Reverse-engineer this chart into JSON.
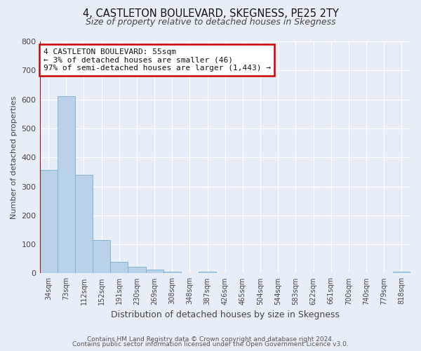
{
  "title": "4, CASTLETON BOULEVARD, SKEGNESS, PE25 2TY",
  "subtitle": "Size of property relative to detached houses in Skegness",
  "xlabel": "Distribution of detached houses by size in Skegness",
  "ylabel": "Number of detached properties",
  "bar_labels": [
    "34sqm",
    "73sqm",
    "112sqm",
    "152sqm",
    "191sqm",
    "230sqm",
    "269sqm",
    "308sqm",
    "348sqm",
    "387sqm",
    "426sqm",
    "465sqm",
    "504sqm",
    "544sqm",
    "583sqm",
    "622sqm",
    "661sqm",
    "700sqm",
    "740sqm",
    "779sqm",
    "818sqm"
  ],
  "bar_values": [
    357,
    611,
    340,
    115,
    40,
    22,
    13,
    5,
    0,
    5,
    0,
    0,
    0,
    0,
    0,
    0,
    0,
    0,
    0,
    0,
    5
  ],
  "bar_color": "#b8d0e8",
  "bar_edge_color": "#7aafd4",
  "ylim": [
    0,
    800
  ],
  "yticks": [
    0,
    100,
    200,
    300,
    400,
    500,
    600,
    700,
    800
  ],
  "annotation_title": "4 CASTLETON BOULEVARD: 55sqm",
  "annotation_line1": "← 3% of detached houses are smaller (46)",
  "annotation_line2": "97% of semi-detached houses are larger (1,443) →",
  "annotation_box_facecolor": "#ffffff",
  "annotation_box_edgecolor": "#cc0000",
  "red_line_x": -0.5,
  "footer1": "Contains HM Land Registry data © Crown copyright and database right 2024.",
  "footer2": "Contains public sector information licensed under the Open Government Licence v3.0.",
  "background_color": "#e8eef8",
  "grid_color": "#ffffff"
}
